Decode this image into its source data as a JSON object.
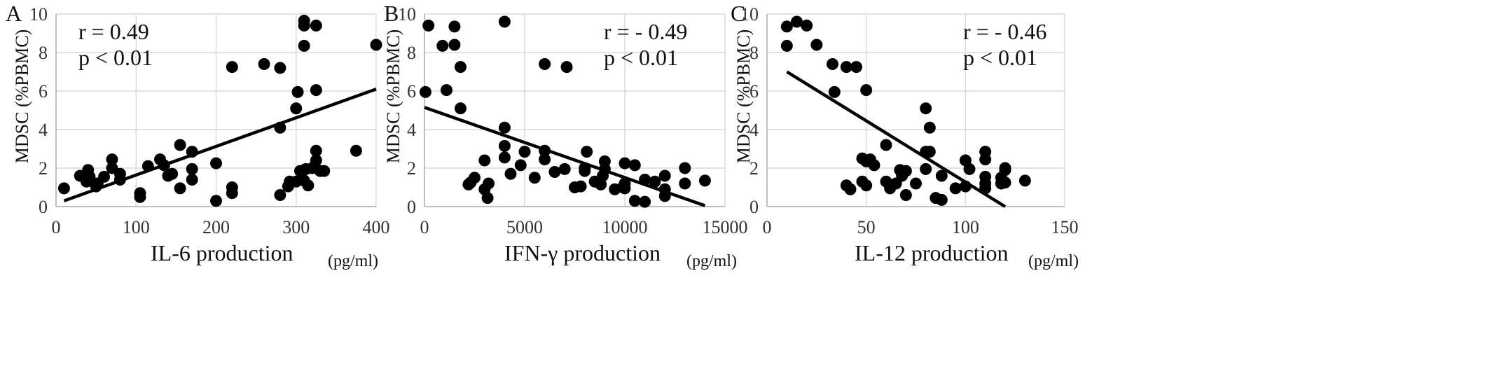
{
  "chart_data": [
    {
      "type": "scatter",
      "panel_label": "A",
      "xlabel": "IL-6 production",
      "unit": "(pg/ml)",
      "ylabel": "MDSC  (%PBMC)",
      "xlim": [
        0,
        400
      ],
      "ylim": [
        0,
        10
      ],
      "xticks": [
        0,
        100,
        200,
        300,
        400
      ],
      "yticks": [
        0,
        2,
        4,
        6,
        8,
        10
      ],
      "grid": true,
      "annotations": [
        "r =  0.49",
        "p < 0.01"
      ],
      "trendline": {
        "x": [
          10,
          400
        ],
        "y": [
          0.3,
          6.1
        ]
      },
      "points": [
        [
          10,
          0.95
        ],
        [
          30,
          1.6
        ],
        [
          38,
          1.3
        ],
        [
          40,
          1.9
        ],
        [
          42,
          1.55
        ],
        [
          50,
          1.05
        ],
        [
          52,
          1.2
        ],
        [
          60,
          1.55
        ],
        [
          70,
          2.0
        ],
        [
          70,
          2.45
        ],
        [
          80,
          1.4
        ],
        [
          80,
          1.7
        ],
        [
          105,
          0.5
        ],
        [
          105,
          0.7
        ],
        [
          115,
          2.1
        ],
        [
          130,
          2.45
        ],
        [
          135,
          2.15
        ],
        [
          140,
          1.6
        ],
        [
          145,
          1.7
        ],
        [
          155,
          0.95
        ],
        [
          155,
          3.2
        ],
        [
          170,
          1.4
        ],
        [
          170,
          1.95
        ],
        [
          170,
          2.85
        ],
        [
          200,
          0.3
        ],
        [
          200,
          2.25
        ],
        [
          220,
          0.7
        ],
        [
          220,
          1.0
        ],
        [
          220,
          7.25
        ],
        [
          260,
          7.4
        ],
        [
          280,
          0.6
        ],
        [
          280,
          4.1
        ],
        [
          280,
          7.2
        ],
        [
          290,
          1.05
        ],
        [
          292,
          1.3
        ],
        [
          300,
          1.3
        ],
        [
          300,
          5.1
        ],
        [
          302,
          5.95
        ],
        [
          305,
          1.85
        ],
        [
          310,
          1.35
        ],
        [
          310,
          8.35
        ],
        [
          310,
          9.4
        ],
        [
          310,
          9.65
        ],
        [
          312,
          1.95
        ],
        [
          315,
          1.1
        ],
        [
          320,
          2.0
        ],
        [
          325,
          6.05
        ],
        [
          325,
          9.4
        ],
        [
          325,
          2.4
        ],
        [
          325,
          2.9
        ],
        [
          330,
          1.85
        ],
        [
          335,
          1.85
        ],
        [
          375,
          2.9
        ],
        [
          400,
          8.4
        ]
      ]
    },
    {
      "type": "scatter",
      "panel_label": "B",
      "xlabel": "IFN-γ production",
      "unit": "(pg/ml)",
      "ylabel": "MDSC  (%PBMC)",
      "xlim": [
        0,
        15000
      ],
      "ylim": [
        0,
        10
      ],
      "xticks": [
        0,
        5000,
        10000,
        15000
      ],
      "yticks": [
        0,
        2,
        4,
        6,
        8,
        10
      ],
      "grid": true,
      "annotations": [
        "r = - 0.49",
        "p < 0.01"
      ],
      "trendline": {
        "x": [
          0,
          14000
        ],
        "y": [
          5.15,
          0.05
        ]
      },
      "points": [
        [
          50,
          5.95
        ],
        [
          200,
          9.4
        ],
        [
          900,
          8.35
        ],
        [
          1100,
          6.05
        ],
        [
          1500,
          8.4
        ],
        [
          1500,
          9.35
        ],
        [
          1800,
          5.1
        ],
        [
          1800,
          7.25
        ],
        [
          2200,
          1.15
        ],
        [
          2300,
          1.25
        ],
        [
          2500,
          1.5
        ],
        [
          3000,
          0.9
        ],
        [
          3000,
          2.4
        ],
        [
          3150,
          0.45
        ],
        [
          3200,
          1.2
        ],
        [
          4000,
          2.55
        ],
        [
          4000,
          3.15
        ],
        [
          4000,
          4.1
        ],
        [
          4000,
          9.6
        ],
        [
          4300,
          1.7
        ],
        [
          4800,
          2.15
        ],
        [
          5000,
          2.85
        ],
        [
          5500,
          1.5
        ],
        [
          6000,
          2.45
        ],
        [
          6000,
          2.9
        ],
        [
          6000,
          7.4
        ],
        [
          6500,
          1.8
        ],
        [
          7000,
          1.95
        ],
        [
          7100,
          7.25
        ],
        [
          7500,
          1.0
        ],
        [
          7800,
          1.05
        ],
        [
          8000,
          1.85
        ],
        [
          8000,
          2.0
        ],
        [
          8100,
          2.85
        ],
        [
          8500,
          1.3
        ],
        [
          8800,
          1.15
        ],
        [
          8900,
          1.6
        ],
        [
          9000,
          1.95
        ],
        [
          9000,
          2.35
        ],
        [
          9500,
          0.9
        ],
        [
          9900,
          1.0
        ],
        [
          10000,
          0.95
        ],
        [
          10000,
          1.2
        ],
        [
          10000,
          2.25
        ],
        [
          10500,
          0.3
        ],
        [
          10500,
          2.15
        ],
        [
          11000,
          0.25
        ],
        [
          11000,
          1.4
        ],
        [
          11500,
          1.3
        ],
        [
          12000,
          0.55
        ],
        [
          12000,
          0.9
        ],
        [
          12000,
          1.6
        ],
        [
          13000,
          1.2
        ],
        [
          13000,
          2.0
        ],
        [
          14000,
          1.35
        ]
      ]
    },
    {
      "type": "scatter",
      "panel_label": "C",
      "xlabel": "IL-12 production",
      "unit": "(pg/ml)",
      "ylabel": "MDSC  (%PBMC)",
      "xlim": [
        0,
        150
      ],
      "ylim": [
        0,
        10
      ],
      "xticks": [
        0,
        50,
        100,
        150
      ],
      "yticks": [
        0,
        2,
        4,
        6,
        8,
        10
      ],
      "grid": true,
      "annotations": [
        "r = - 0.46",
        "p < 0.01"
      ],
      "trendline": {
        "x": [
          10,
          120
        ],
        "y": [
          7.0,
          0.0
        ]
      },
      "points": [
        [
          10,
          8.35
        ],
        [
          10,
          9.35
        ],
        [
          15,
          9.6
        ],
        [
          20,
          9.4
        ],
        [
          25,
          8.4
        ],
        [
          33,
          7.4
        ],
        [
          34,
          5.95
        ],
        [
          40,
          1.1
        ],
        [
          40,
          7.25
        ],
        [
          42,
          0.9
        ],
        [
          45,
          7.25
        ],
        [
          48,
          1.3
        ],
        [
          48,
          2.5
        ],
        [
          50,
          1.1
        ],
        [
          50,
          2.35
        ],
        [
          50,
          6.05
        ],
        [
          52,
          2.45
        ],
        [
          54,
          2.15
        ],
        [
          60,
          1.3
        ],
        [
          60,
          3.2
        ],
        [
          62,
          0.95
        ],
        [
          65,
          1.2
        ],
        [
          67,
          1.9
        ],
        [
          68,
          1.6
        ],
        [
          70,
          0.6
        ],
        [
          70,
          1.85
        ],
        [
          75,
          1.2
        ],
        [
          80,
          1.95
        ],
        [
          80,
          2.85
        ],
        [
          80,
          5.1
        ],
        [
          82,
          2.85
        ],
        [
          82,
          4.1
        ],
        [
          85,
          0.45
        ],
        [
          88,
          0.35
        ],
        [
          88,
          1.6
        ],
        [
          95,
          0.95
        ],
        [
          100,
          1.05
        ],
        [
          100,
          2.4
        ],
        [
          102,
          1.95
        ],
        [
          110,
          0.95
        ],
        [
          110,
          1.2
        ],
        [
          110,
          1.55
        ],
        [
          110,
          2.45
        ],
        [
          110,
          2.85
        ],
        [
          118,
          1.2
        ],
        [
          118,
          1.5
        ],
        [
          120,
          1.25
        ],
        [
          120,
          1.9
        ],
        [
          120,
          2.0
        ],
        [
          130,
          1.35
        ]
      ]
    }
  ]
}
